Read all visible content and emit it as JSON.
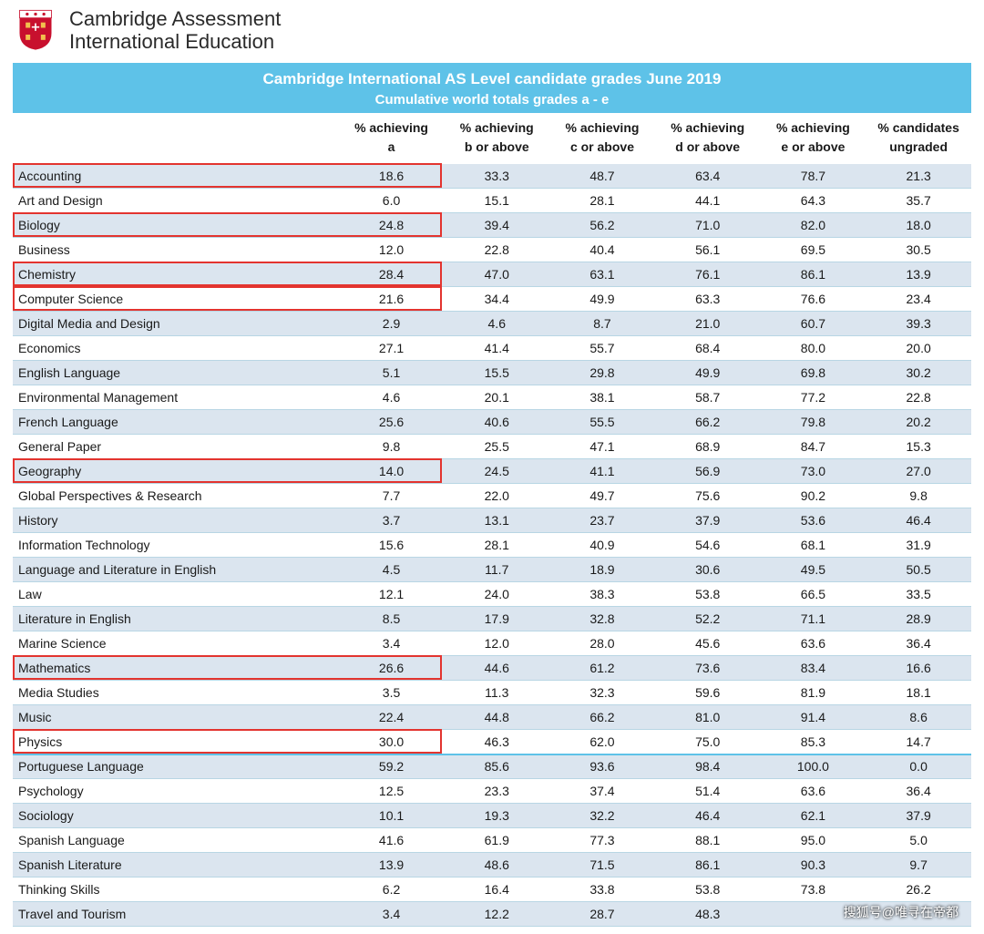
{
  "brand": {
    "line1": "Cambridge Assessment",
    "line2": "International Education",
    "shield_color": "#c8102e"
  },
  "banner": {
    "title": "Cambridge International AS Level candidate grades June 2019",
    "subtitle": "Cumulative world totals grades a - e",
    "bg_color": "#5ec2e8",
    "text_color": "#ffffff"
  },
  "table": {
    "columns": [
      "",
      "% achieving a",
      "% achieving b or above",
      "% achieving c or above",
      "% achieving d or above",
      "% achieving e or above",
      "% candidates ungraded"
    ],
    "row_style": {
      "shaded_bg": "#dbe5ef",
      "border_color": "#b8d6e4",
      "section_divider_color": "#5ec2e8",
      "highlight_border_color": "#e3342f",
      "fontsize": 14
    },
    "rows": [
      {
        "subject": "Accounting",
        "a": "18.6",
        "b": "33.3",
        "c": "48.7",
        "d": "63.4",
        "e": "78.7",
        "u": "21.3",
        "shaded": true,
        "highlight": true
      },
      {
        "subject": "Art and Design",
        "a": "6.0",
        "b": "15.1",
        "c": "28.1",
        "d": "44.1",
        "e": "64.3",
        "u": "35.7",
        "shaded": false,
        "highlight": false
      },
      {
        "subject": "Biology",
        "a": "24.8",
        "b": "39.4",
        "c": "56.2",
        "d": "71.0",
        "e": "82.0",
        "u": "18.0",
        "shaded": true,
        "highlight": true
      },
      {
        "subject": "Business",
        "a": "12.0",
        "b": "22.8",
        "c": "40.4",
        "d": "56.1",
        "e": "69.5",
        "u": "30.5",
        "shaded": false,
        "highlight": false
      },
      {
        "subject": "Chemistry",
        "a": "28.4",
        "b": "47.0",
        "c": "63.1",
        "d": "76.1",
        "e": "86.1",
        "u": "13.9",
        "shaded": true,
        "highlight": true
      },
      {
        "subject": "Computer Science",
        "a": "21.6",
        "b": "34.4",
        "c": "49.9",
        "d": "63.3",
        "e": "76.6",
        "u": "23.4",
        "shaded": false,
        "highlight": true
      },
      {
        "subject": "Digital Media and Design",
        "a": "2.9",
        "b": "4.6",
        "c": "8.7",
        "d": "21.0",
        "e": "60.7",
        "u": "39.3",
        "shaded": true,
        "highlight": false
      },
      {
        "subject": "Economics",
        "a": "27.1",
        "b": "41.4",
        "c": "55.7",
        "d": "68.4",
        "e": "80.0",
        "u": "20.0",
        "shaded": false,
        "highlight": false
      },
      {
        "subject": "English Language",
        "a": "5.1",
        "b": "15.5",
        "c": "29.8",
        "d": "49.9",
        "e": "69.8",
        "u": "30.2",
        "shaded": true,
        "highlight": false
      },
      {
        "subject": "Environmental Management",
        "a": "4.6",
        "b": "20.1",
        "c": "38.1",
        "d": "58.7",
        "e": "77.2",
        "u": "22.8",
        "shaded": false,
        "highlight": false
      },
      {
        "subject": "French Language",
        "a": "25.6",
        "b": "40.6",
        "c": "55.5",
        "d": "66.2",
        "e": "79.8",
        "u": "20.2",
        "shaded": true,
        "highlight": false
      },
      {
        "subject": "General Paper",
        "a": "9.8",
        "b": "25.5",
        "c": "47.1",
        "d": "68.9",
        "e": "84.7",
        "u": "15.3",
        "shaded": false,
        "highlight": false
      },
      {
        "subject": "Geography",
        "a": "14.0",
        "b": "24.5",
        "c": "41.1",
        "d": "56.9",
        "e": "73.0",
        "u": "27.0",
        "shaded": true,
        "highlight": true
      },
      {
        "subject": "Global Perspectives & Research",
        "a": "7.7",
        "b": "22.0",
        "c": "49.7",
        "d": "75.6",
        "e": "90.2",
        "u": "9.8",
        "shaded": false,
        "highlight": false
      },
      {
        "subject": "History",
        "a": "3.7",
        "b": "13.1",
        "c": "23.7",
        "d": "37.9",
        "e": "53.6",
        "u": "46.4",
        "shaded": true,
        "highlight": false
      },
      {
        "subject": "Information Technology",
        "a": "15.6",
        "b": "28.1",
        "c": "40.9",
        "d": "54.6",
        "e": "68.1",
        "u": "31.9",
        "shaded": false,
        "highlight": false
      },
      {
        "subject": "Language and Literature in English",
        "a": "4.5",
        "b": "11.7",
        "c": "18.9",
        "d": "30.6",
        "e": "49.5",
        "u": "50.5",
        "shaded": true,
        "highlight": false
      },
      {
        "subject": "Law",
        "a": "12.1",
        "b": "24.0",
        "c": "38.3",
        "d": "53.8",
        "e": "66.5",
        "u": "33.5",
        "shaded": false,
        "highlight": false
      },
      {
        "subject": "Literature in English",
        "a": "8.5",
        "b": "17.9",
        "c": "32.8",
        "d": "52.2",
        "e": "71.1",
        "u": "28.9",
        "shaded": true,
        "highlight": false
      },
      {
        "subject": "Marine Science",
        "a": "3.4",
        "b": "12.0",
        "c": "28.0",
        "d": "45.6",
        "e": "63.6",
        "u": "36.4",
        "shaded": false,
        "highlight": false
      },
      {
        "subject": "Mathematics",
        "a": "26.6",
        "b": "44.6",
        "c": "61.2",
        "d": "73.6",
        "e": "83.4",
        "u": "16.6",
        "shaded": true,
        "highlight": true
      },
      {
        "subject": "Media Studies",
        "a": "3.5",
        "b": "11.3",
        "c": "32.3",
        "d": "59.6",
        "e": "81.9",
        "u": "18.1",
        "shaded": false,
        "highlight": false
      },
      {
        "subject": "Music",
        "a": "22.4",
        "b": "44.8",
        "c": "66.2",
        "d": "81.0",
        "e": "91.4",
        "u": "8.6",
        "shaded": true,
        "highlight": false
      },
      {
        "subject": "Physics",
        "a": "30.0",
        "b": "46.3",
        "c": "62.0",
        "d": "75.0",
        "e": "85.3",
        "u": "14.7",
        "shaded": false,
        "highlight": true
      },
      {
        "subject": "Portuguese Language",
        "a": "59.2",
        "b": "85.6",
        "c": "93.6",
        "d": "98.4",
        "e": "100.0",
        "u": "0.0",
        "shaded": true,
        "highlight": false,
        "section_break": true
      },
      {
        "subject": "Psychology",
        "a": "12.5",
        "b": "23.3",
        "c": "37.4",
        "d": "51.4",
        "e": "63.6",
        "u": "36.4",
        "shaded": false,
        "highlight": false
      },
      {
        "subject": "Sociology",
        "a": "10.1",
        "b": "19.3",
        "c": "32.2",
        "d": "46.4",
        "e": "62.1",
        "u": "37.9",
        "shaded": true,
        "highlight": false
      },
      {
        "subject": "Spanish Language",
        "a": "41.6",
        "b": "61.9",
        "c": "77.3",
        "d": "88.1",
        "e": "95.0",
        "u": "5.0",
        "shaded": false,
        "highlight": false
      },
      {
        "subject": "Spanish Literature",
        "a": "13.9",
        "b": "48.6",
        "c": "71.5",
        "d": "86.1",
        "e": "90.3",
        "u": "9.7",
        "shaded": true,
        "highlight": false
      },
      {
        "subject": "Thinking Skills",
        "a": "6.2",
        "b": "16.4",
        "c": "33.8",
        "d": "53.8",
        "e": "73.8",
        "u": "26.2",
        "shaded": false,
        "highlight": false
      },
      {
        "subject": "Travel and Tourism",
        "a": "3.4",
        "b": "12.2",
        "c": "28.7",
        "d": "48.3",
        "e": "",
        "u": "",
        "shaded": true,
        "highlight": false
      }
    ]
  },
  "watermark": "搜狐号@唯寻在帝都"
}
